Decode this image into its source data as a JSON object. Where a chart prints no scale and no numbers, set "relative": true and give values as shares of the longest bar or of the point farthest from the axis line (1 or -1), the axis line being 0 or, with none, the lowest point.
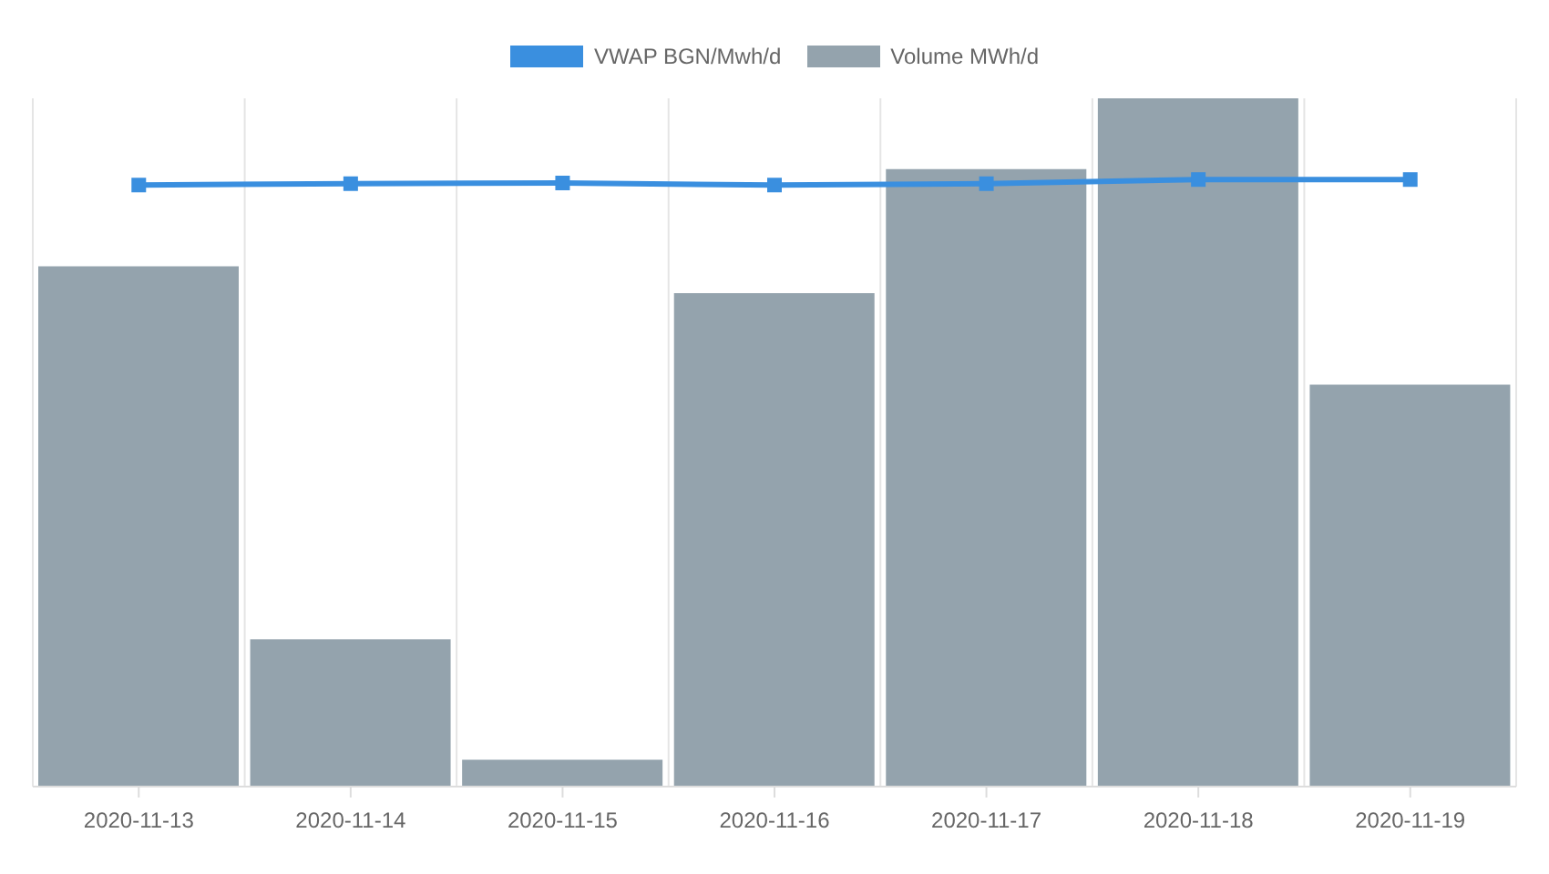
{
  "chart_data": {
    "type": "bar",
    "relative": true,
    "categories": [
      "2020-11-13",
      "2020-11-14",
      "2020-11-15",
      "2020-11-16",
      "2020-11-17",
      "2020-11-18",
      "2020-11-19"
    ],
    "series": [
      {
        "name": "VWAP BGN/Mwh/d",
        "type": "line",
        "color": "#3a8fdf",
        "values": [
          0.874,
          0.876,
          0.877,
          0.874,
          0.876,
          0.882,
          0.882
        ]
      },
      {
        "name": "Volume MWh/d",
        "color": "#94a3ad",
        "values": [
          0.756,
          0.214,
          0.039,
          0.717,
          0.897,
          1,
          0.584
        ]
      }
    ],
    "legend": "top",
    "grid": "x",
    "marker": "square"
  }
}
